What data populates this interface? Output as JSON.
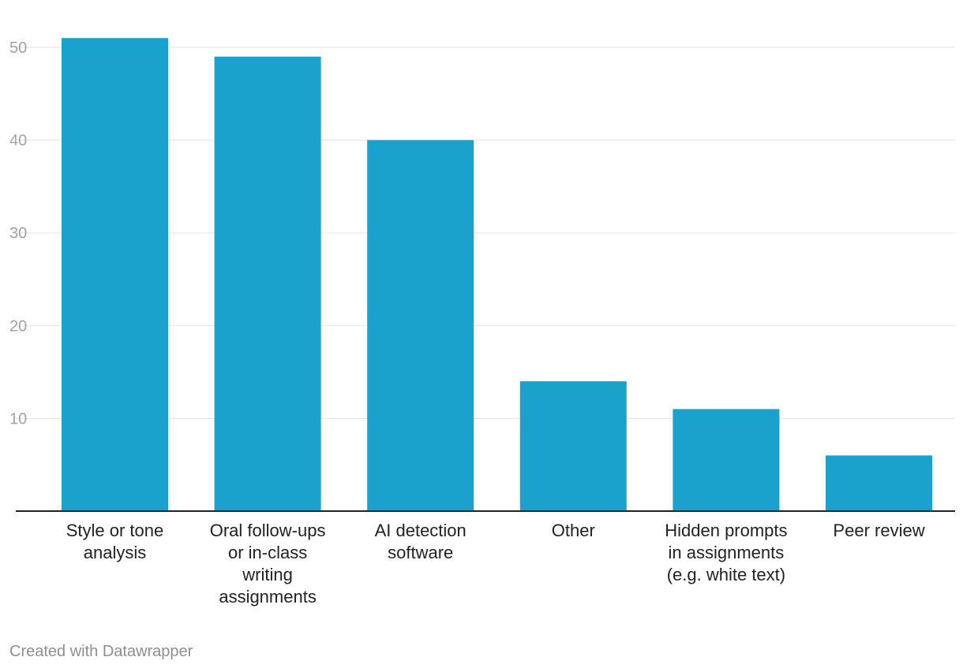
{
  "chart_data": {
    "type": "bar",
    "categories": [
      [
        "Style or tone",
        "analysis"
      ],
      [
        "Oral follow-ups",
        "or in-class",
        "writing",
        "assignments"
      ],
      [
        "AI detection",
        "software"
      ],
      [
        "Other"
      ],
      [
        "Hidden prompts",
        "in assignments",
        "(e.g. white text)"
      ],
      [
        "Peer review"
      ]
    ],
    "values": [
      51,
      49,
      40,
      14,
      11,
      6
    ],
    "ylim": [
      0,
      50
    ],
    "yticks": [
      10,
      20,
      30,
      40,
      50
    ],
    "grid": true,
    "bar_color": "#1aa1cc",
    "grid_color": "#e3e3e3",
    "axis_color": "#222222"
  },
  "footer": {
    "credit": "Created with Datawrapper"
  }
}
